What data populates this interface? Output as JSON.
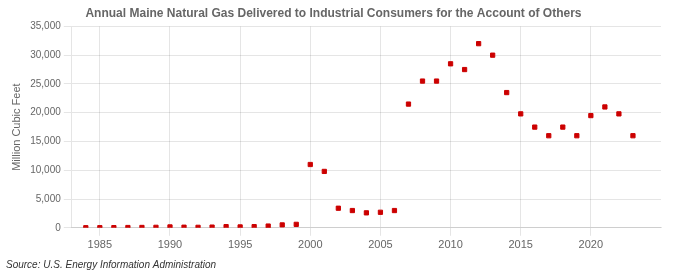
{
  "chart_data": {
    "type": "scatter",
    "title": "Annual Maine Natural Gas Delivered to Industrial Consumers for the Account of Others",
    "y_label": "Million Cubic Feet",
    "annotations": [
      "Source: U.S. Energy Information Administration"
    ],
    "x": [
      1984,
      1985,
      1986,
      1987,
      1988,
      1989,
      1990,
      1991,
      1992,
      1993,
      1994,
      1995,
      1996,
      1997,
      1998,
      1999,
      2000,
      2001,
      2002,
      2003,
      2004,
      2005,
      2006,
      2007,
      2008,
      2009,
      2010,
      2011,
      2012,
      2013,
      2014,
      2015,
      2016,
      2017,
      2018,
      2019,
      2020,
      2021,
      2022,
      2023
    ],
    "values": [
      10,
      20,
      30,
      50,
      60,
      80,
      150,
      100,
      80,
      120,
      200,
      150,
      200,
      300,
      500,
      600,
      11000,
      9800,
      3400,
      3000,
      2600,
      2700,
      3000,
      21500,
      25500,
      25500,
      28500,
      27500,
      32000,
      30000,
      23500,
      19800,
      17500,
      16000,
      17500,
      16000,
      19500,
      21000,
      19800,
      16000
    ],
    "color": "#cc0000",
    "marker": "square",
    "xlim": [
      1983,
      2025
    ],
    "xticks": [
      1985,
      1990,
      1995,
      2000,
      2005,
      2010,
      2015,
      2020
    ],
    "ylim": [
      0,
      35000
    ],
    "yticks": [
      0,
      {
        "value": 5000,
        "label": "5,000"
      },
      {
        "value": 10000,
        "label": "10,000"
      },
      {
        "value": 15000,
        "label": "15,000"
      },
      {
        "value": 20000,
        "label": "20,000"
      },
      {
        "value": 25000,
        "label": "25,000"
      },
      {
        "value": 30000,
        "label": "30,000"
      },
      {
        "value": 35000,
        "label": "35,000"
      }
    ],
    "grid": true
  }
}
